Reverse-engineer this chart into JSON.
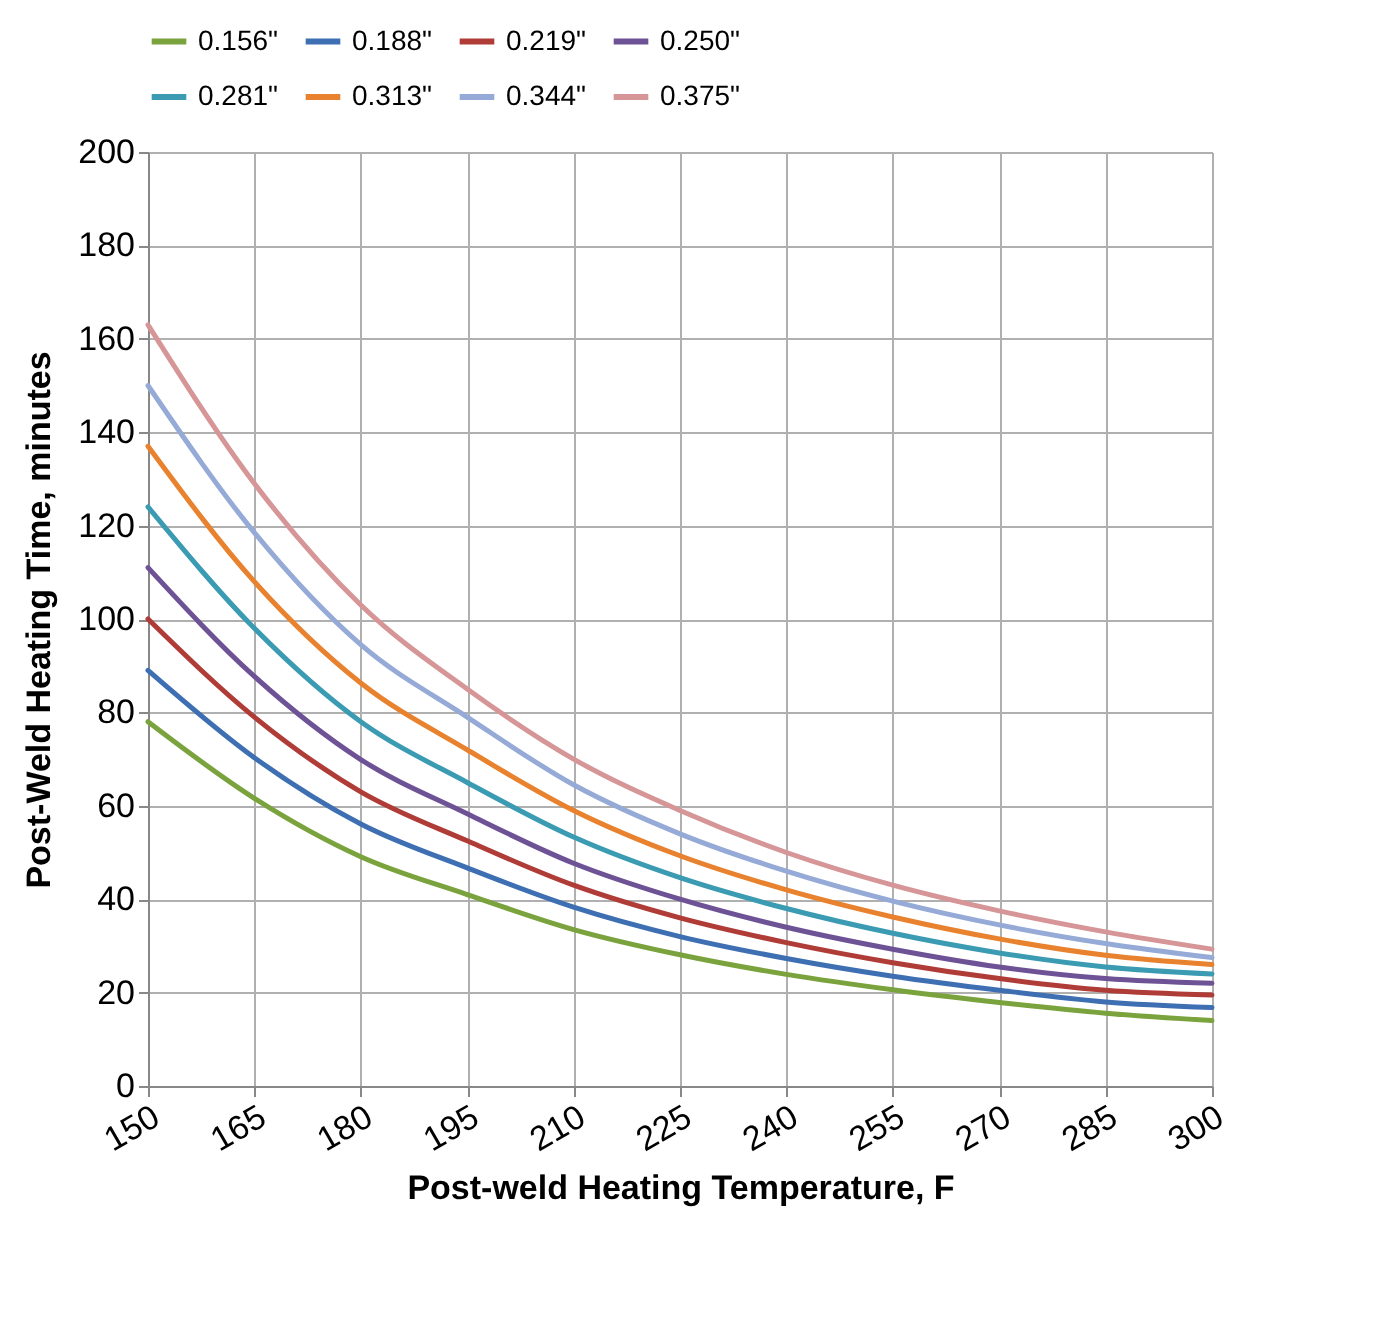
{
  "chart_data": {
    "type": "line",
    "xlabel": "Post-weld Heating Temperature, F",
    "ylabel": "Post-Weld Heating Time, minutes",
    "x": [
      150,
      165,
      180,
      195,
      210,
      225,
      240,
      255,
      270,
      285,
      300
    ],
    "series": [
      {
        "name": "0.156\"",
        "color": "#7aa33e",
        "values": [
          78,
          61.6,
          49.1,
          41,
          33.5,
          28.1,
          23.9,
          20.6,
          17.9,
          15.6,
          14
        ]
      },
      {
        "name": "0.188\"",
        "color": "#3e6fb2",
        "values": [
          89,
          70.3,
          56.1,
          46.7,
          38.3,
          32,
          27.3,
          23.5,
          20.5,
          18,
          16.8
        ]
      },
      {
        "name": "0.219\"",
        "color": "#b03c38",
        "values": [
          100,
          79,
          63,
          52.5,
          43,
          36,
          30.7,
          26.4,
          23,
          20.5,
          19.5
        ]
      },
      {
        "name": "0.250\"",
        "color": "#6e5296",
        "values": [
          111,
          87.7,
          69.9,
          58.3,
          47.7,
          40,
          34,
          29.3,
          25.5,
          23,
          22
        ]
      },
      {
        "name": "0.281\"",
        "color": "#3a9bb2",
        "values": [
          124,
          98,
          78,
          65,
          53.3,
          44.6,
          38,
          32.7,
          28.5,
          25.5,
          24
        ]
      },
      {
        "name": "0.313\"",
        "color": "#e8822e",
        "values": [
          137,
          108,
          86.3,
          72,
          59,
          49.3,
          42,
          36.2,
          31.5,
          28,
          26
        ]
      },
      {
        "name": "0.344\"",
        "color": "#95aad6",
        "values": [
          150,
          118.5,
          94.5,
          79,
          64.5,
          54,
          46,
          39.6,
          34.5,
          30.5,
          27.5
        ]
      },
      {
        "name": "0.375\"",
        "color": "#d69596",
        "values": [
          163,
          129,
          103,
          85,
          70,
          59,
          50,
          43,
          37.5,
          33,
          29.3
        ]
      }
    ],
    "xlim": [
      150,
      300
    ],
    "xticks": [
      150,
      165,
      180,
      195,
      210,
      225,
      240,
      255,
      270,
      285,
      300
    ],
    "ylim": [
      0,
      200
    ],
    "yticks": [
      0,
      20,
      40,
      60,
      80,
      100,
      120,
      140,
      160,
      180,
      200
    ],
    "grid": true,
    "legend": "top",
    "marker": "none",
    "line_style": "solid"
  }
}
